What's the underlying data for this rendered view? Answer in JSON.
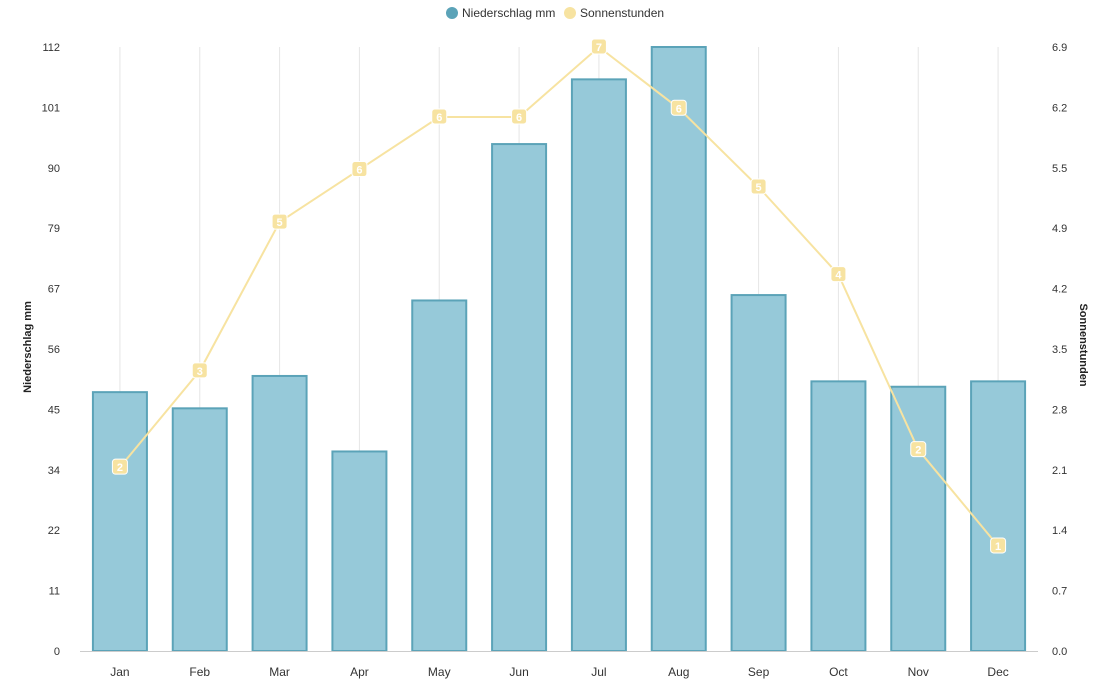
{
  "chart_data": {
    "type": "bar",
    "categories": [
      "Jan",
      "Feb",
      "Mar",
      "Apr",
      "May",
      "Jun",
      "Jul",
      "Aug",
      "Sep",
      "Oct",
      "Nov",
      "Dec"
    ],
    "series": [
      {
        "name": "Niederschlag mm",
        "chart_type": "bar",
        "axis": "left",
        "color": "#5ba3b8",
        "fill": "#96c9d9",
        "values": [
          48,
          45,
          51,
          37,
          65,
          94,
          106,
          112,
          66,
          50,
          49,
          50
        ]
      },
      {
        "name": "Sonnenstunden",
        "chart_type": "line",
        "axis": "right",
        "color": "#f7e3a1",
        "values": [
          2.1,
          3.2,
          4.9,
          5.5,
          6.1,
          6.1,
          6.9,
          6.2,
          5.3,
          4.3,
          2.3,
          1.2
        ],
        "data_labels": [
          "2",
          "3",
          "5",
          "6",
          "6",
          "6",
          "7",
          "6",
          "5",
          "4",
          "2",
          "1"
        ]
      }
    ],
    "y_left": {
      "label": "Niederschlag mm",
      "range": [
        0,
        112
      ],
      "ticks": [
        "0",
        "11",
        "22",
        "34",
        "45",
        "56",
        "67",
        "79",
        "90",
        "101",
        "112"
      ]
    },
    "y_right": {
      "label": "Sonnenstunden",
      "range": [
        0,
        6.9
      ],
      "ticks": [
        "0.0",
        "0.7",
        "1.4",
        "2.1",
        "2.8",
        "3.5",
        "4.2",
        "4.9",
        "5.5",
        "6.2",
        "6.9"
      ]
    },
    "legend": {
      "position": "top-center"
    },
    "grid": {
      "vertical": true,
      "horizontal": false
    }
  }
}
